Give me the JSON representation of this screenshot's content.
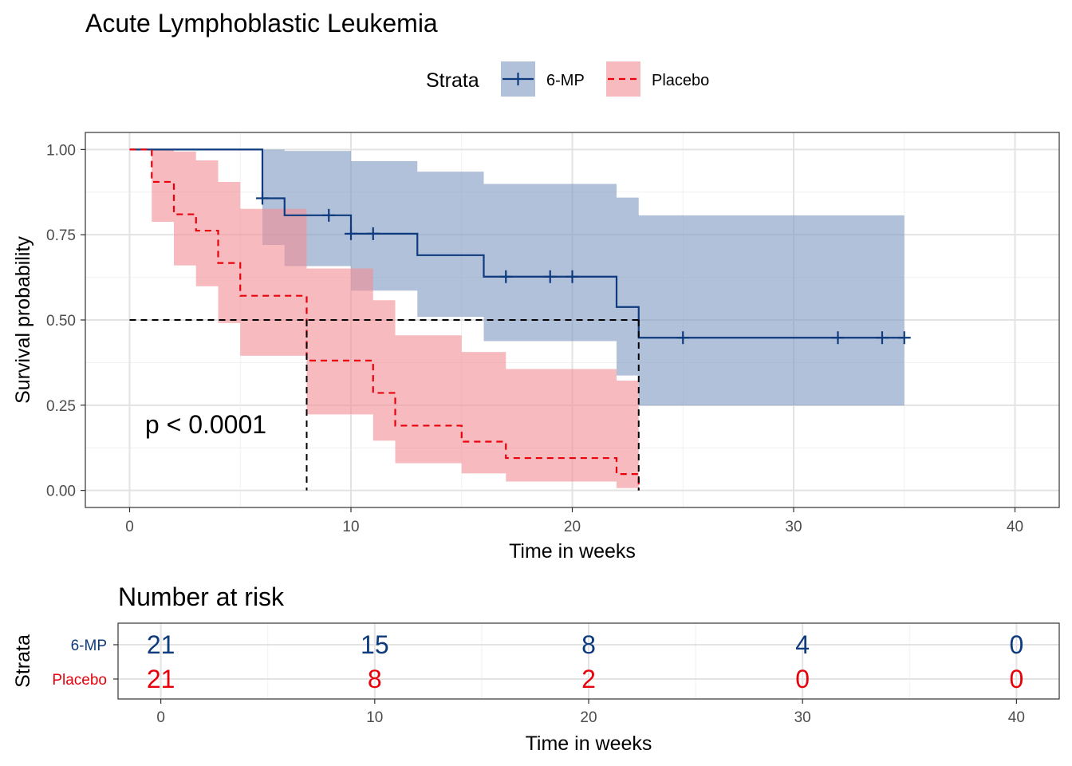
{
  "chart_data": [
    {
      "type": "line",
      "subtype": "kaplan-meier survival curve with confidence bands",
      "title": "Acute Lymphoblastic Leukemia",
      "xlabel": "Time in weeks",
      "ylabel": "Survival probability",
      "xlim": [
        -2,
        42
      ],
      "ylim": [
        -0.05,
        1.05
      ],
      "xticks": [
        0,
        10,
        20,
        30,
        40
      ],
      "yticks": [
        0.0,
        0.25,
        0.5,
        0.75,
        1.0
      ],
      "ytick_labels": [
        "0.00",
        "0.25",
        "0.50",
        "0.75",
        "1.00"
      ],
      "grid": true,
      "legend": {
        "title": "Strata",
        "position": "top"
      },
      "annotation": "p < 0.0001",
      "median_lines": {
        "y": 0.5,
        "x": [
          8,
          23
        ]
      },
      "series": [
        {
          "name": "6-MP",
          "color": "#0e3a7e",
          "band_color": "#7f98c1",
          "linestyle": "solid",
          "steps": [
            {
              "x": 0,
              "y": 1.0,
              "lower": 1.0,
              "upper": 1.0
            },
            {
              "x": 6,
              "y": 0.857,
              "lower": 0.72,
              "upper": 1.0
            },
            {
              "x": 7,
              "y": 0.807,
              "lower": 0.658,
              "upper": 0.996
            },
            {
              "x": 10,
              "y": 0.753,
              "lower": 0.586,
              "upper": 0.966
            },
            {
              "x": 13,
              "y": 0.69,
              "lower": 0.509,
              "upper": 0.935
            },
            {
              "x": 16,
              "y": 0.627,
              "lower": 0.438,
              "upper": 0.899
            },
            {
              "x": 22,
              "y": 0.538,
              "lower": 0.337,
              "upper": 0.859
            },
            {
              "x": 23,
              "y": 0.448,
              "lower": 0.249,
              "upper": 0.807
            }
          ],
          "end": 35,
          "censored": [
            6,
            9,
            10,
            11,
            17,
            19,
            20,
            25,
            32,
            34,
            35
          ]
        },
        {
          "name": "Placebo",
          "color": "#e8000b",
          "band_color": "#f28e94",
          "linestyle": "dashed",
          "steps": [
            {
              "x": 0,
              "y": 1.0,
              "lower": 1.0,
              "upper": 1.0
            },
            {
              "x": 1,
              "y": 0.905,
              "lower": 0.788,
              "upper": 1.0
            },
            {
              "x": 2,
              "y": 0.81,
              "lower": 0.66,
              "upper": 0.994
            },
            {
              "x": 3,
              "y": 0.762,
              "lower": 0.599,
              "upper": 0.968
            },
            {
              "x": 4,
              "y": 0.667,
              "lower": 0.491,
              "upper": 0.905
            },
            {
              "x": 5,
              "y": 0.571,
              "lower": 0.395,
              "upper": 0.826
            },
            {
              "x": 8,
              "y": 0.381,
              "lower": 0.223,
              "upper": 0.651
            },
            {
              "x": 11,
              "y": 0.286,
              "lower": 0.146,
              "upper": 0.558
            },
            {
              "x": 12,
              "y": 0.19,
              "lower": 0.08,
              "upper": 0.455
            },
            {
              "x": 15,
              "y": 0.143,
              "lower": 0.05,
              "upper": 0.406
            },
            {
              "x": 17,
              "y": 0.095,
              "lower": 0.026,
              "upper": 0.356
            },
            {
              "x": 22,
              "y": 0.048,
              "lower": 0.007,
              "upper": 0.322
            },
            {
              "x": 23,
              "y": 0.0,
              "lower": 0.0,
              "upper": 0.0
            }
          ],
          "end": 23,
          "censored": []
        }
      ]
    },
    {
      "type": "table",
      "title": "Number at risk",
      "xlabel": "Time in weeks",
      "ylabel": "Strata",
      "xlim": [
        -2,
        42
      ],
      "xticks": [
        0,
        10,
        20,
        30,
        40
      ],
      "rows": [
        {
          "name": "6-MP",
          "color": "#0e3a7e",
          "values": [
            21,
            15,
            8,
            4,
            0
          ]
        },
        {
          "name": "Placebo",
          "color": "#e8000b",
          "values": [
            21,
            8,
            2,
            0,
            0
          ]
        }
      ]
    }
  ]
}
